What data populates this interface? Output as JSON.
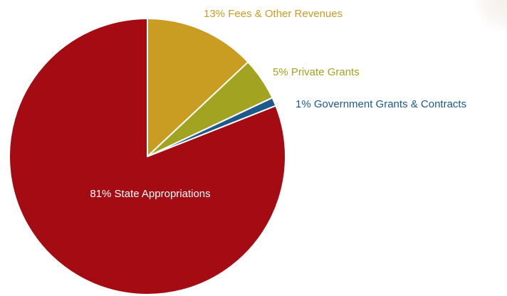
{
  "chart_data": {
    "type": "pie",
    "slices": [
      {
        "label": "13% Fees & Other Revenues",
        "value": 13,
        "color": "#c99c22"
      },
      {
        "label": "5% Private Grants",
        "value": 5,
        "color": "#a3a322"
      },
      {
        "label": "1% Government Grants & Contracts",
        "value": 1,
        "color": "#1c5a8e"
      },
      {
        "label": "81% State Appropriations",
        "value": 81,
        "color": "#a50b12"
      }
    ],
    "start": "12 o'clock",
    "direction": "clockwise",
    "legend": "none",
    "slice_border_color": "#ffffff"
  }
}
